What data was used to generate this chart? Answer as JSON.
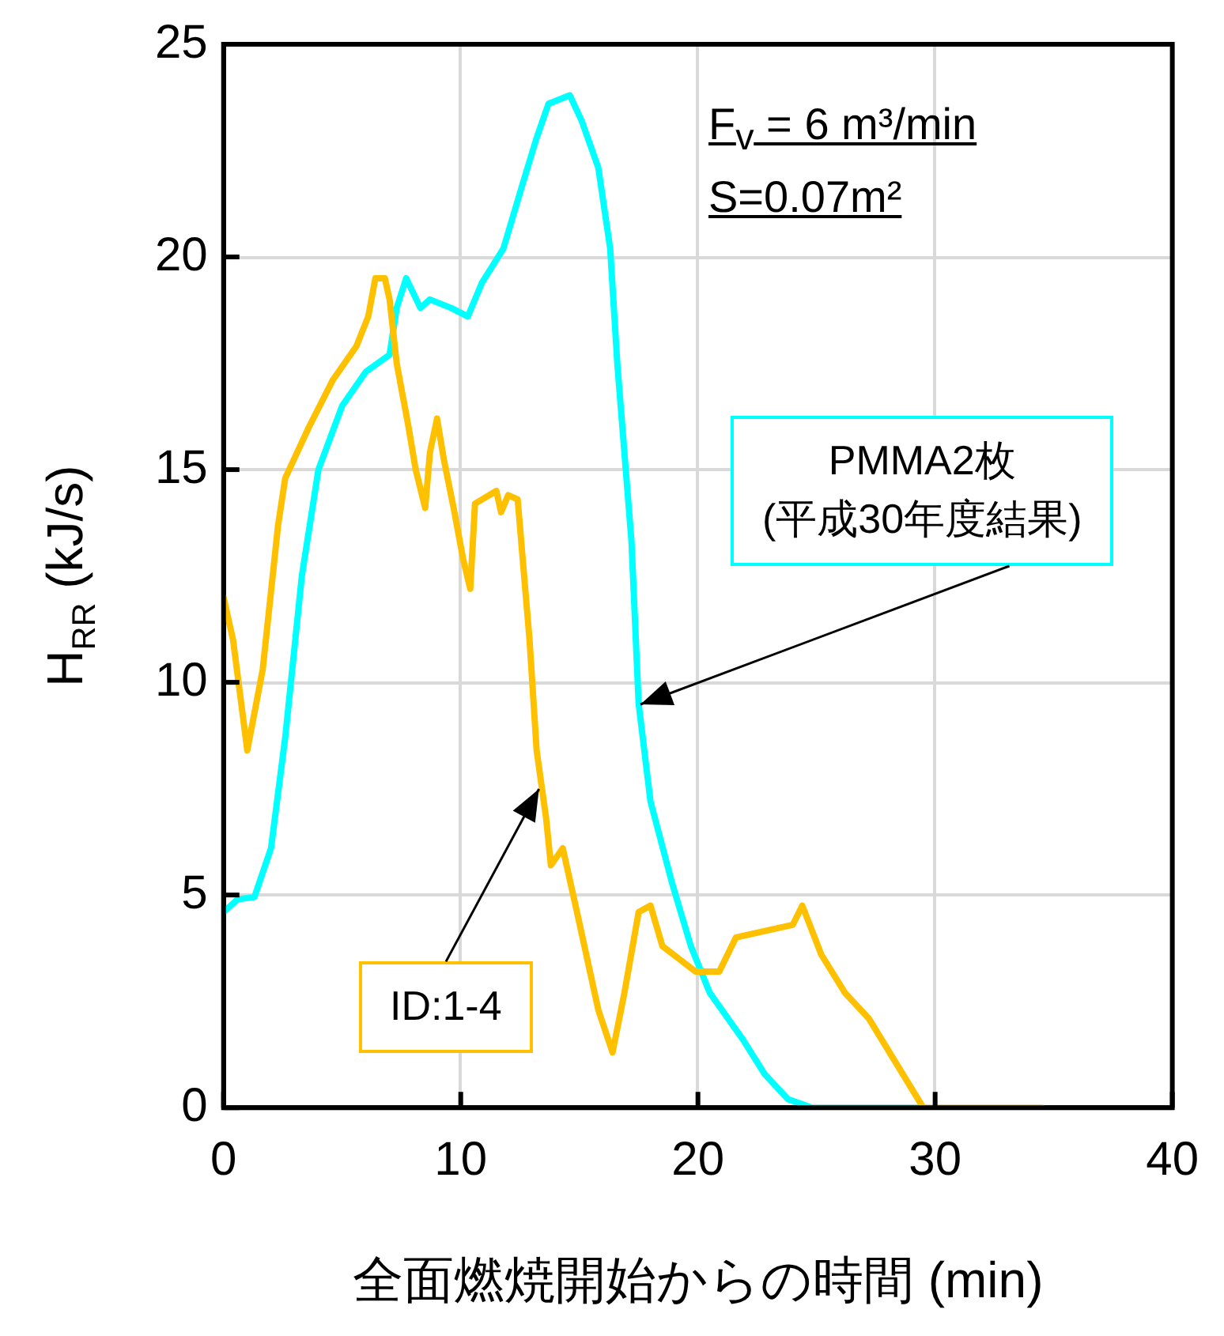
{
  "chart_data": {
    "type": "line",
    "xlabel": "全面燃焼開始からの時間 (min)",
    "ylabel": "H$_{RR}$ (kJ/s)",
    "xlim": [
      0,
      40
    ],
    "xticks": [
      0,
      10,
      20,
      30,
      40
    ],
    "ylim": [
      0,
      25
    ],
    "yticks": [
      0,
      5,
      10,
      15,
      20,
      25
    ],
    "grid": true,
    "marker": "none",
    "line_style": "solid",
    "series": [
      {
        "color": "#ffc000",
        "x": [
          0,
          0.4,
          1.0,
          1.65,
          2.3,
          2.6,
          3.6,
          4.6,
          5.6,
          6.1,
          6.4,
          6.8,
          7.0,
          7.3,
          7.8,
          8.1,
          8.5,
          8.7,
          9.0,
          9.3,
          9.7,
          10.1,
          10.4,
          10.6,
          11.5,
          11.7,
          12.0,
          12.4,
          12.9,
          13.2,
          13.6,
          13.8,
          14.3,
          14.9,
          15.8,
          16.4,
          16.9,
          17.5,
          18.0,
          18.5,
          19.2,
          19.9,
          20.9,
          21.6,
          23.2,
          24.0,
          24.4,
          25.2,
          26.2,
          27.2,
          29.5,
          34.5
        ],
        "values": [
          12.0,
          11.0,
          8.4,
          10.3,
          13.7,
          14.8,
          16.0,
          17.1,
          17.9,
          18.6,
          19.5,
          19.5,
          19.0,
          17.5,
          16.0,
          15.0,
          14.1,
          15.4,
          16.2,
          15.2,
          14.1,
          12.9,
          12.2,
          14.2,
          14.5,
          14.0,
          14.4,
          14.3,
          11.0,
          8.4,
          6.8,
          5.7,
          6.1,
          4.6,
          2.3,
          1.3,
          2.7,
          4.6,
          4.75,
          3.8,
          3.5,
          3.2,
          3.2,
          4.0,
          4.2,
          4.3,
          4.75,
          3.6,
          2.7,
          2.1,
          0,
          0
        ]
      },
      {
        "color": "#00ffff",
        "x": [
          0,
          0.6,
          1.3,
          2.0,
          2.6,
          3.3,
          4.0,
          5.0,
          6.0,
          7.0,
          7.3,
          7.7,
          8.3,
          8.7,
          9.6,
          10.3,
          10.9,
          11.8,
          12.6,
          13.2,
          13.7,
          14.6,
          15.1,
          15.8,
          16.3,
          16.6,
          17.2,
          17.5,
          18.0,
          18.9,
          19.7,
          20.5,
          21.9,
          22.8,
          23.8,
          24.8,
          29.5
        ],
        "values": [
          4.6,
          4.9,
          4.95,
          6.1,
          8.7,
          12.5,
          15.0,
          16.5,
          17.3,
          17.7,
          18.8,
          19.5,
          18.8,
          19.0,
          18.8,
          18.6,
          19.4,
          20.2,
          21.7,
          22.8,
          23.6,
          23.8,
          23.2,
          22.1,
          20.2,
          17.5,
          13.3,
          9.5,
          7.2,
          5.3,
          3.8,
          2.7,
          1.6,
          0.8,
          0.2,
          0,
          0
        ]
      }
    ],
    "annotations": [
      {
        "text": "ID:1-4",
        "x": 13.3,
        "y": 7.5
      },
      {
        "text": "PMMA2枚\n(平成30年度結果)",
        "x": 17.6,
        "y": 9.5
      },
      "F$_{v}$ = 6 m³/min",
      "S=0.07m²"
    ]
  }
}
